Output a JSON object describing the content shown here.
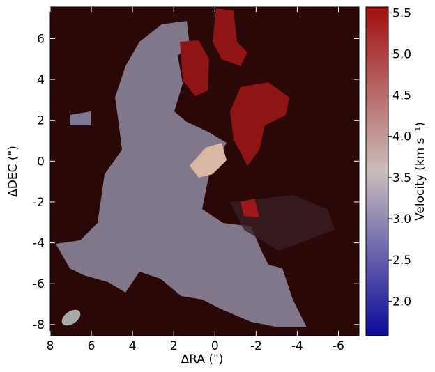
{
  "chart_data": {
    "type": "image",
    "xlabel": "ΔRA (\")",
    "ylabel": "ΔDEC (\")",
    "xlim": [
      8,
      -7
    ],
    "ylim": [
      -8.55,
      7.55
    ],
    "xticks": [
      8,
      6,
      4,
      2,
      0,
      -2,
      -4,
      -6
    ],
    "yticks": [
      -8,
      -6,
      -4,
      -2,
      0,
      2,
      4,
      6
    ],
    "colorbar_label": "Velocity (km s⁻¹)",
    "clim": [
      1.58,
      5.57
    ],
    "colorbar_ticks": [
      {
        "value": 2,
        "label": "2.0"
      },
      {
        "value": 2.5,
        "label": "2.5"
      },
      {
        "value": 3,
        "label": "3.0"
      },
      {
        "value": 3.5,
        "label": "3.5"
      },
      {
        "value": 4,
        "label": "4.0"
      },
      {
        "value": 4.5,
        "label": "4.5"
      },
      {
        "value": 5,
        "label": "5.0"
      },
      {
        "value": 5.5,
        "label": "5.5"
      }
    ],
    "colormap": [
      "#0a0a9c",
      "#c9bdbb",
      "#a30e0e"
    ]
  }
}
